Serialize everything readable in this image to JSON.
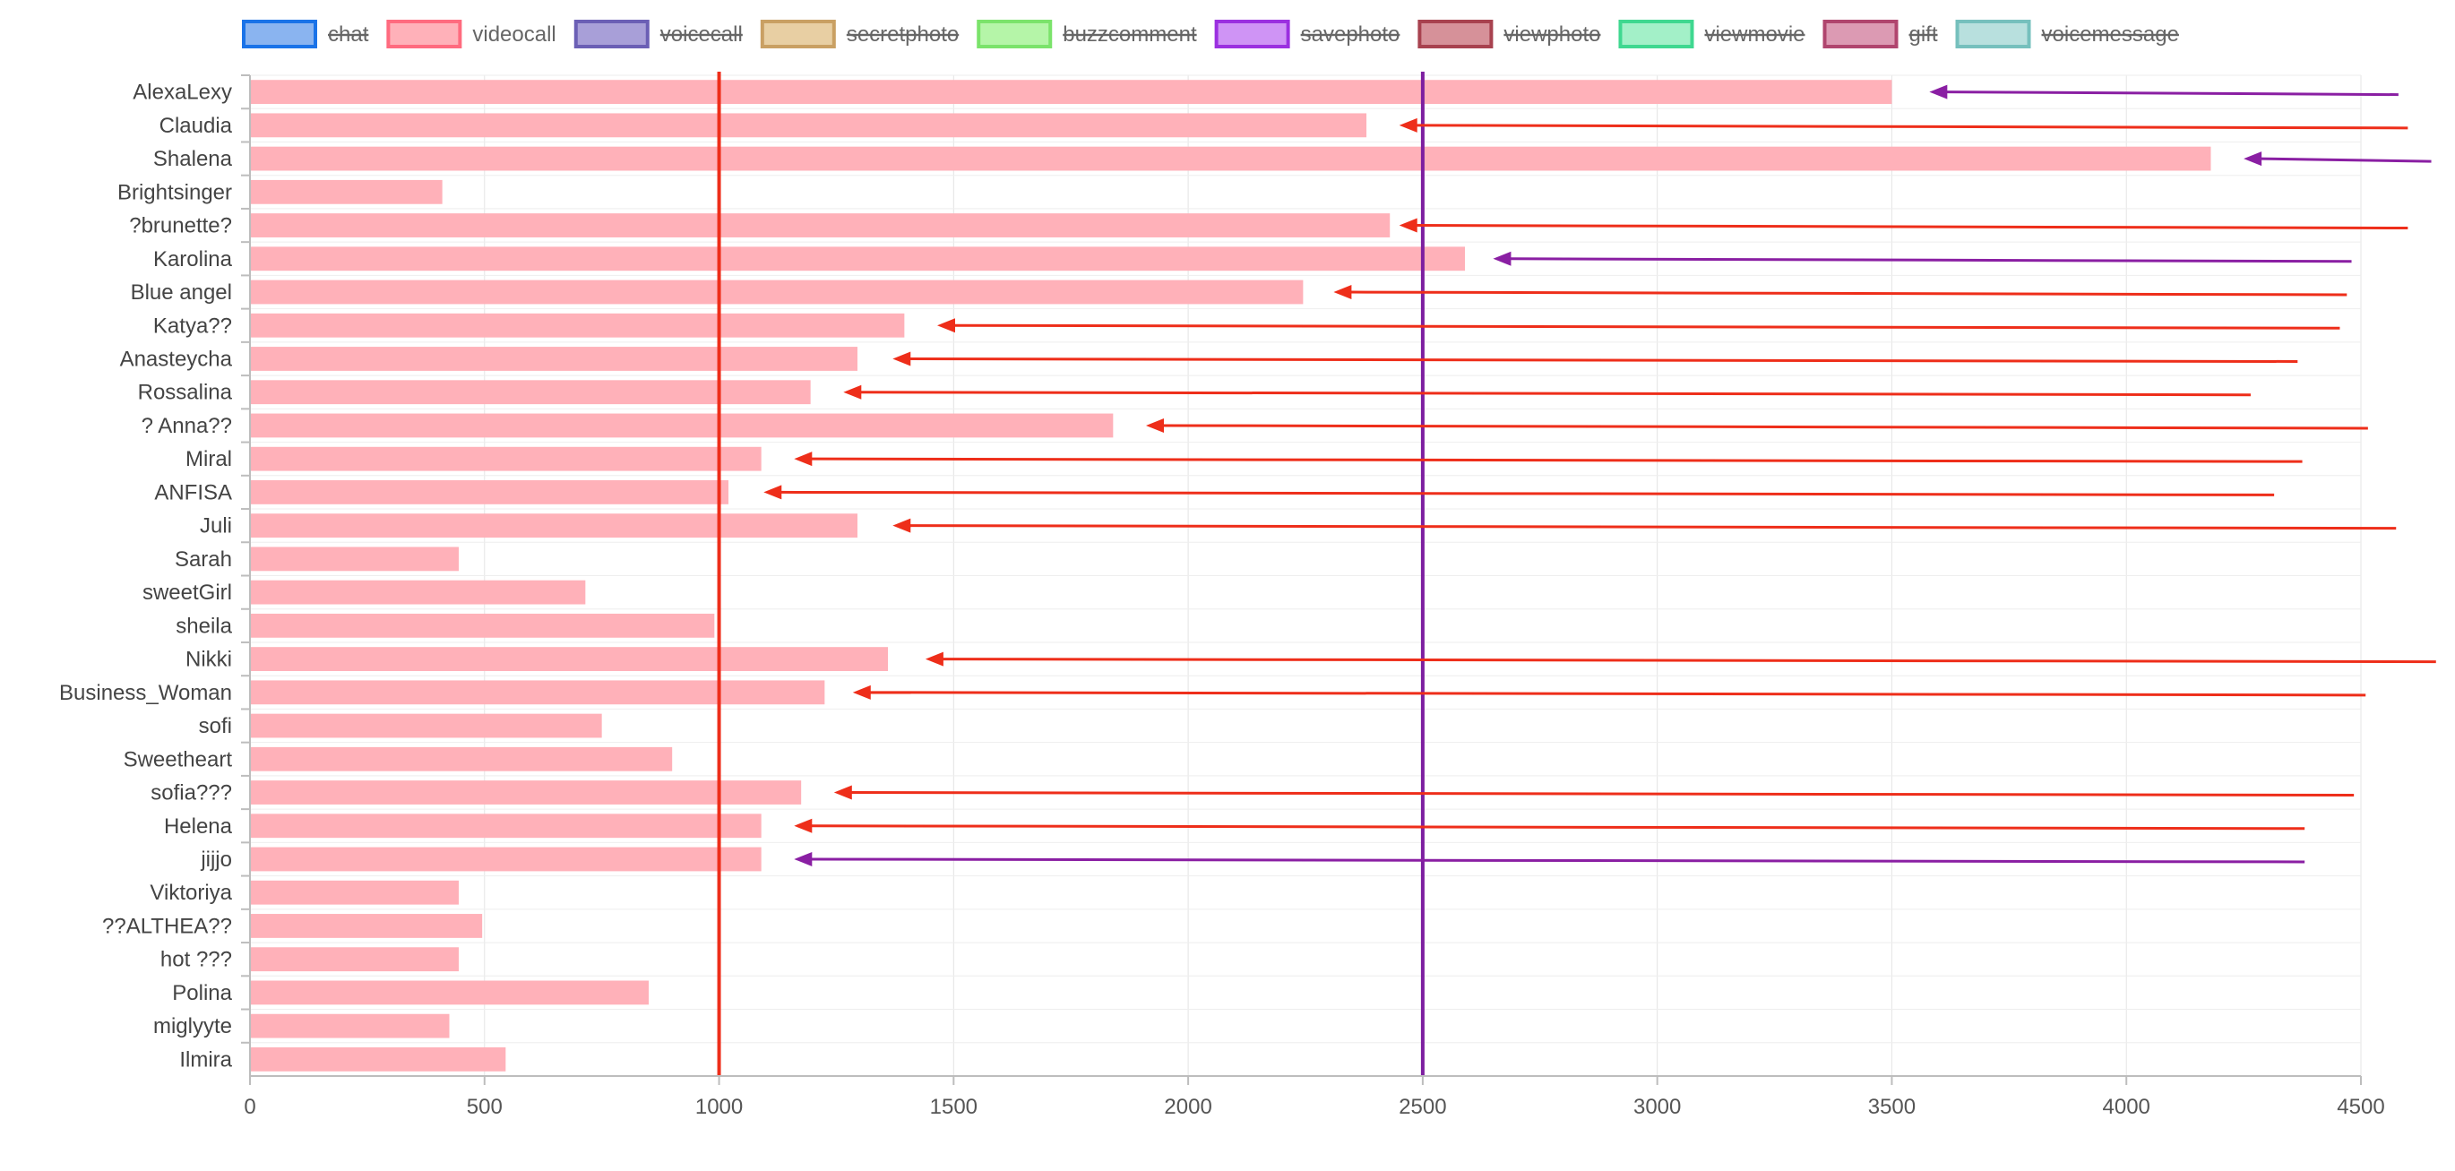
{
  "chart_data": {
    "type": "bar",
    "orientation": "horizontal",
    "title": "",
    "xlabel": "",
    "ylabel": "",
    "xlim": [
      0,
      4500
    ],
    "x_ticks": [
      0,
      500,
      1000,
      1500,
      2000,
      2500,
      3000,
      3500,
      4000,
      4500
    ],
    "grid": true,
    "legend_position": "top",
    "legend": [
      {
        "name": "chat",
        "color": "#1a73e8",
        "fill": "#8ab4f0",
        "hidden": true
      },
      {
        "name": "videocall",
        "color": "#ff6b7f",
        "fill": "#ffb1b9",
        "hidden": false
      },
      {
        "name": "voicecall",
        "color": "#6b5fb5",
        "fill": "#a89fd8",
        "hidden": true
      },
      {
        "name": "secretphoto",
        "color": "#c9a063",
        "fill": "#e8cfa3",
        "hidden": true
      },
      {
        "name": "buzzcomment",
        "color": "#7be36b",
        "fill": "#b5f5a8",
        "hidden": true
      },
      {
        "name": "savephoto",
        "color": "#9b30e0",
        "fill": "#cf94f5",
        "hidden": true
      },
      {
        "name": "viewphoto",
        "color": "#a8424f",
        "fill": "#d69199",
        "hidden": true
      },
      {
        "name": "viewmovie",
        "color": "#3fd890",
        "fill": "#a3f0c8",
        "hidden": true
      },
      {
        "name": "gift",
        "color": "#b0456e",
        "fill": "#dc9ab3",
        "hidden": true
      },
      {
        "name": "voicemessage",
        "color": "#76c0bd",
        "fill": "#b8e0de",
        "hidden": true
      }
    ],
    "categories": [
      "AlexaLexy",
      "Claudia",
      "Shalena",
      "Brightsinger",
      "?brunette?",
      "Karolina",
      "Blue angel",
      "Katya??",
      "Anasteycha",
      "Rossalina",
      "? Anna??",
      "Miral",
      "ANFISA",
      "Juli",
      "Sarah",
      "sweetGirl",
      "sheila",
      "Nikki",
      "Business_Woman",
      "sofi",
      "Sweetheart",
      "sofia???",
      "Helena",
      "jijjo",
      "Viktoriya",
      "??ALTHEA??",
      "hot ???",
      "Polina",
      "miglyyte",
      "Ilmira"
    ],
    "series": [
      {
        "name": "videocall",
        "color": "#ffb1b9",
        "values": [
          3500,
          2380,
          4180,
          410,
          2430,
          2590,
          2245,
          1395,
          1295,
          1195,
          1840,
          1090,
          1020,
          1295,
          445,
          715,
          990,
          1360,
          1225,
          750,
          900,
          1175,
          1090,
          1090,
          445,
          495,
          445,
          850,
          425,
          545
        ]
      }
    ],
    "reference_lines": [
      {
        "value": 1000,
        "color": "#ee2e1a"
      },
      {
        "value": 2500,
        "color": "#7d1fa0"
      }
    ],
    "arrows": [
      {
        "category": "AlexaLexy",
        "from": 4580,
        "to": 3580,
        "color": "#8a1fa3"
      },
      {
        "category": "Claudia",
        "from": 4600,
        "to": 2450,
        "color": "#ee2e1a"
      },
      {
        "category": "Shalena",
        "from": 4650,
        "to": 4250,
        "color": "#8a1fa3"
      },
      {
        "category": "?brunette?",
        "from": 4600,
        "to": 2450,
        "color": "#ee2e1a"
      },
      {
        "category": "Karolina",
        "from": 4480,
        "to": 2650,
        "color": "#8a1fa3"
      },
      {
        "category": "Blue angel",
        "from": 4470,
        "to": 2310,
        "color": "#ee2e1a"
      },
      {
        "category": "Katya??",
        "from": 4455,
        "to": 1465,
        "color": "#ee2e1a"
      },
      {
        "category": "Anasteycha",
        "from": 4365,
        "to": 1370,
        "color": "#ee2e1a"
      },
      {
        "category": "Rossalina",
        "from": 4265,
        "to": 1265,
        "color": "#ee2e1a"
      },
      {
        "category": "? Anna??",
        "from": 4515,
        "to": 1910,
        "color": "#ee2e1a"
      },
      {
        "category": "Miral",
        "from": 4375,
        "to": 1160,
        "color": "#ee2e1a"
      },
      {
        "category": "ANFISA",
        "from": 4315,
        "to": 1095,
        "color": "#ee2e1a"
      },
      {
        "category": "Juli",
        "from": 4575,
        "to": 1370,
        "color": "#ee2e1a"
      },
      {
        "category": "Nikki",
        "from": 4660,
        "to": 1440,
        "color": "#ee2e1a"
      },
      {
        "category": "Business_Woman",
        "from": 4510,
        "to": 1285,
        "color": "#ee2e1a"
      },
      {
        "category": "sofia???",
        "from": 4485,
        "to": 1245,
        "color": "#ee2e1a"
      },
      {
        "category": "Helena",
        "from": 4380,
        "to": 1160,
        "color": "#ee2e1a"
      },
      {
        "category": "jijjo",
        "from": 4380,
        "to": 1160,
        "color": "#8a1fa3"
      }
    ]
  }
}
